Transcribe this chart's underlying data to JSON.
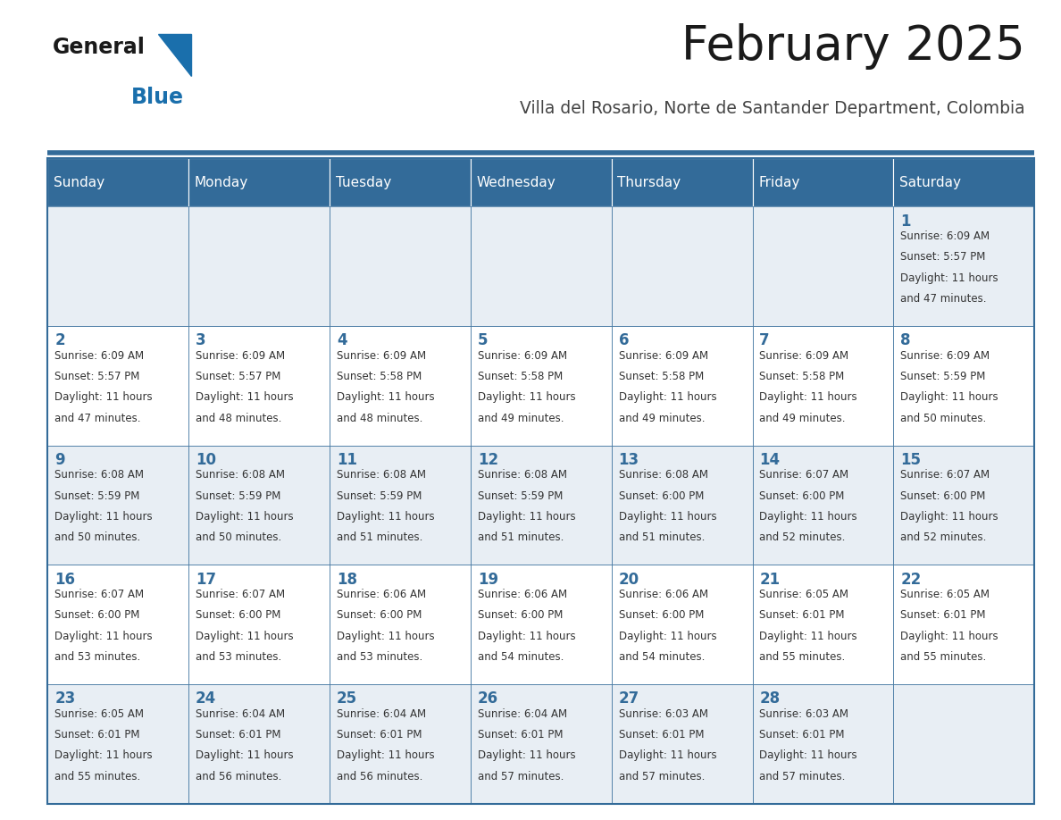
{
  "title": "February 2025",
  "subtitle": "Villa del Rosario, Norte de Santander Department, Colombia",
  "header_bg": "#336b99",
  "header_text_color": "#ffffff",
  "cell_bg_odd": "#e8eef4",
  "cell_bg_even": "#ffffff",
  "border_color": "#336b99",
  "day_number_color": "#336b99",
  "text_color": "#333333",
  "days_of_week": [
    "Sunday",
    "Monday",
    "Tuesday",
    "Wednesday",
    "Thursday",
    "Friday",
    "Saturday"
  ],
  "weeks": [
    [
      {
        "day": null,
        "sunrise": null,
        "sunset": null,
        "daylight": null
      },
      {
        "day": null,
        "sunrise": null,
        "sunset": null,
        "daylight": null
      },
      {
        "day": null,
        "sunrise": null,
        "sunset": null,
        "daylight": null
      },
      {
        "day": null,
        "sunrise": null,
        "sunset": null,
        "daylight": null
      },
      {
        "day": null,
        "sunrise": null,
        "sunset": null,
        "daylight": null
      },
      {
        "day": null,
        "sunrise": null,
        "sunset": null,
        "daylight": null
      },
      {
        "day": 1,
        "sunrise": "6:09 AM",
        "sunset": "5:57 PM",
        "daylight": "11 hours and 47 minutes."
      }
    ],
    [
      {
        "day": 2,
        "sunrise": "6:09 AM",
        "sunset": "5:57 PM",
        "daylight": "11 hours and 47 minutes."
      },
      {
        "day": 3,
        "sunrise": "6:09 AM",
        "sunset": "5:57 PM",
        "daylight": "11 hours and 48 minutes."
      },
      {
        "day": 4,
        "sunrise": "6:09 AM",
        "sunset": "5:58 PM",
        "daylight": "11 hours and 48 minutes."
      },
      {
        "day": 5,
        "sunrise": "6:09 AM",
        "sunset": "5:58 PM",
        "daylight": "11 hours and 49 minutes."
      },
      {
        "day": 6,
        "sunrise": "6:09 AM",
        "sunset": "5:58 PM",
        "daylight": "11 hours and 49 minutes."
      },
      {
        "day": 7,
        "sunrise": "6:09 AM",
        "sunset": "5:58 PM",
        "daylight": "11 hours and 49 minutes."
      },
      {
        "day": 8,
        "sunrise": "6:09 AM",
        "sunset": "5:59 PM",
        "daylight": "11 hours and 50 minutes."
      }
    ],
    [
      {
        "day": 9,
        "sunrise": "6:08 AM",
        "sunset": "5:59 PM",
        "daylight": "11 hours and 50 minutes."
      },
      {
        "day": 10,
        "sunrise": "6:08 AM",
        "sunset": "5:59 PM",
        "daylight": "11 hours and 50 minutes."
      },
      {
        "day": 11,
        "sunrise": "6:08 AM",
        "sunset": "5:59 PM",
        "daylight": "11 hours and 51 minutes."
      },
      {
        "day": 12,
        "sunrise": "6:08 AM",
        "sunset": "5:59 PM",
        "daylight": "11 hours and 51 minutes."
      },
      {
        "day": 13,
        "sunrise": "6:08 AM",
        "sunset": "6:00 PM",
        "daylight": "11 hours and 51 minutes."
      },
      {
        "day": 14,
        "sunrise": "6:07 AM",
        "sunset": "6:00 PM",
        "daylight": "11 hours and 52 minutes."
      },
      {
        "day": 15,
        "sunrise": "6:07 AM",
        "sunset": "6:00 PM",
        "daylight": "11 hours and 52 minutes."
      }
    ],
    [
      {
        "day": 16,
        "sunrise": "6:07 AM",
        "sunset": "6:00 PM",
        "daylight": "11 hours and 53 minutes."
      },
      {
        "day": 17,
        "sunrise": "6:07 AM",
        "sunset": "6:00 PM",
        "daylight": "11 hours and 53 minutes."
      },
      {
        "day": 18,
        "sunrise": "6:06 AM",
        "sunset": "6:00 PM",
        "daylight": "11 hours and 53 minutes."
      },
      {
        "day": 19,
        "sunrise": "6:06 AM",
        "sunset": "6:00 PM",
        "daylight": "11 hours and 54 minutes."
      },
      {
        "day": 20,
        "sunrise": "6:06 AM",
        "sunset": "6:00 PM",
        "daylight": "11 hours and 54 minutes."
      },
      {
        "day": 21,
        "sunrise": "6:05 AM",
        "sunset": "6:01 PM",
        "daylight": "11 hours and 55 minutes."
      },
      {
        "day": 22,
        "sunrise": "6:05 AM",
        "sunset": "6:01 PM",
        "daylight": "11 hours and 55 minutes."
      }
    ],
    [
      {
        "day": 23,
        "sunrise": "6:05 AM",
        "sunset": "6:01 PM",
        "daylight": "11 hours and 55 minutes."
      },
      {
        "day": 24,
        "sunrise": "6:04 AM",
        "sunset": "6:01 PM",
        "daylight": "11 hours and 56 minutes."
      },
      {
        "day": 25,
        "sunrise": "6:04 AM",
        "sunset": "6:01 PM",
        "daylight": "11 hours and 56 minutes."
      },
      {
        "day": 26,
        "sunrise": "6:04 AM",
        "sunset": "6:01 PM",
        "daylight": "11 hours and 57 minutes."
      },
      {
        "day": 27,
        "sunrise": "6:03 AM",
        "sunset": "6:01 PM",
        "daylight": "11 hours and 57 minutes."
      },
      {
        "day": 28,
        "sunrise": "6:03 AM",
        "sunset": "6:01 PM",
        "daylight": "11 hours and 57 minutes."
      },
      {
        "day": null,
        "sunrise": null,
        "sunset": null,
        "daylight": null
      }
    ]
  ],
  "logo_color": "#1a6fac",
  "title_fontsize": 38,
  "subtitle_fontsize": 13.5,
  "header_fontsize": 11,
  "day_num_fontsize": 12,
  "cell_text_fontsize": 8.5
}
